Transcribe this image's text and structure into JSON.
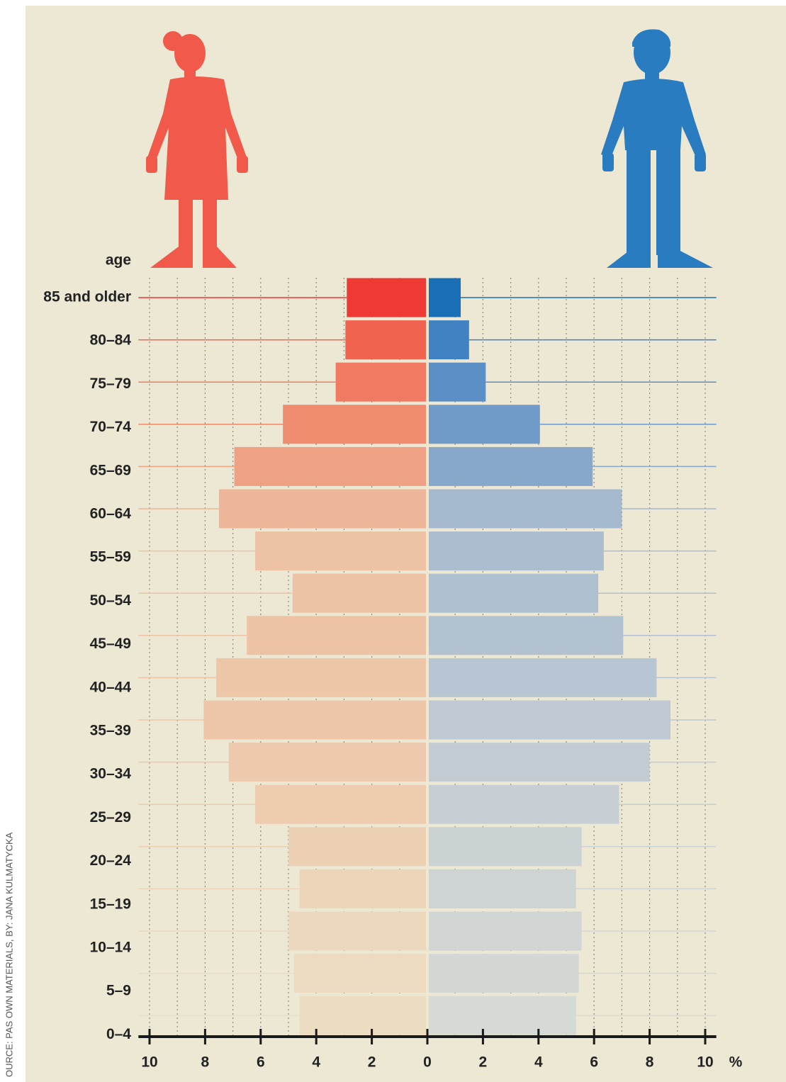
{
  "chart_data": {
    "type": "pyramid",
    "y_label": "age",
    "x_unit": "%",
    "source": "OURCE: PAS OWN MATERIALS, BY: JANA KULMATYCKA",
    "categories": [
      "85 and older",
      "80–84",
      "75–79",
      "70–74",
      "65–69",
      "60–64",
      "55–59",
      "50–54",
      "45–49",
      "40–44",
      "35–39",
      "30–34",
      "25–29",
      "20–24",
      "15–19",
      "10–14",
      "5–9",
      "0–4"
    ],
    "series": [
      {
        "side": "left",
        "values": [
          2.9,
          2.95,
          3.3,
          5.2,
          6.95,
          7.5,
          6.2,
          4.85,
          6.5,
          7.6,
          8.05,
          7.15,
          6.2,
          5.0,
          4.6,
          5.0,
          4.8,
          4.6
        ],
        "colors": [
          "#ee3934",
          "#f0634f",
          "#f07b62",
          "#ef8b6f",
          "#eea183",
          "#eeb698",
          "#eec2a4",
          "#eec3a5",
          "#eec3a5",
          "#eec6a8",
          "#eec7aa",
          "#edcaad",
          "#edccb0",
          "#edd1b5",
          "#ecd5b9",
          "#ecd8bd",
          "#ecdbc0",
          "#ecdcc2"
        ]
      },
      {
        "side": "right",
        "values": [
          1.2,
          1.5,
          2.1,
          4.05,
          5.95,
          7.0,
          6.35,
          6.15,
          7.05,
          8.25,
          8.75,
          8.0,
          6.9,
          5.55,
          5.35,
          5.55,
          5.45,
          5.35
        ],
        "colors": [
          "#1a6fb6",
          "#4082c2",
          "#5c8fc6",
          "#709ac8",
          "#87a7cb",
          "#a5b9cf",
          "#acbdd0",
          "#afc0d1",
          "#b3c2d1",
          "#b8c5d2",
          "#bec9d3",
          "#c3ccd3",
          "#c7cfd4",
          "#cbd2d4",
          "#ced4d4",
          "#d1d6d4",
          "#d4d8d4",
          "#d6dad4"
        ]
      }
    ],
    "xlim": [
      -10.4,
      10.4
    ],
    "xticks": [
      {
        "value": -10,
        "label": "10"
      },
      {
        "value": -8,
        "label": "8"
      },
      {
        "value": -6,
        "label": "6"
      },
      {
        "value": -4,
        "label": "4"
      },
      {
        "value": -2,
        "label": "2"
      },
      0,
      2,
      4,
      6,
      8,
      10
    ],
    "grid_x": [
      -10,
      -9,
      -8,
      -7,
      -6,
      -5,
      -4,
      -3,
      -2,
      -1,
      1,
      2,
      3,
      4,
      5,
      6,
      7,
      8,
      9,
      10
    ],
    "grid": true
  }
}
